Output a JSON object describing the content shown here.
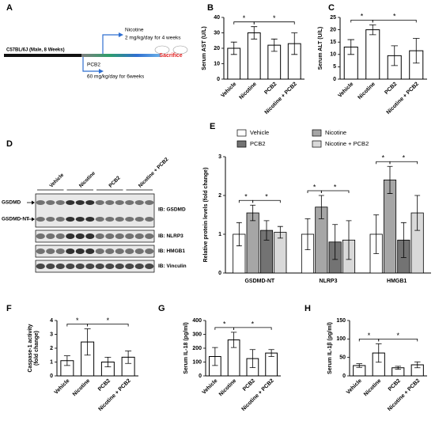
{
  "timeline": {
    "panel": "A",
    "strain": "C57BL/6J (Male, 8 Weeks)",
    "treatments": [
      {
        "name": "Nicotine",
        "dose": "2 mg/kg/day for 4 weeks"
      },
      {
        "name": "PCB2",
        "dose": "60 mg/kg/day for 6weeks"
      }
    ],
    "endpoint": "Sacrifice"
  },
  "blot": {
    "panel": "D",
    "groups": [
      "Vehicle",
      "Nicotine",
      "PCB2",
      "Nicotine + PCB2"
    ],
    "bands": [
      "GSDMD",
      "GSDMD-NT"
    ],
    "antibodies": [
      "IB: GSDMD",
      "IB: NLRP3",
      "IB: HMGB1",
      "IB: Vinculin"
    ]
  },
  "chart_data": [
    {
      "panel": "B",
      "type": "bar",
      "ylabel": "Serum AST (U/L)",
      "categories": [
        "Vehicle",
        "Nicotine",
        "PCB2",
        "Nicotine + PCB2"
      ],
      "values": [
        20,
        30,
        22,
        23
      ],
      "errors": [
        4,
        4,
        4,
        7
      ],
      "color": "#ffffff",
      "ylim": [
        0,
        40
      ],
      "yticks": [
        0,
        10,
        20,
        30,
        40
      ],
      "annotations": [
        {
          "text": "*",
          "from": 0,
          "to": 1
        },
        {
          "text": "*",
          "from": 1,
          "to": 3
        }
      ]
    },
    {
      "panel": "C",
      "type": "bar",
      "ylabel": "Serum ALT (U/L)",
      "categories": [
        "Vehicle",
        "Nicotine",
        "PCB2",
        "Nicotine + PCB2"
      ],
      "values": [
        13,
        20,
        9.5,
        11.5
      ],
      "errors": [
        3,
        2,
        4,
        5
      ],
      "color": "#ffffff",
      "ylim": [
        0,
        25
      ],
      "yticks": [
        0,
        5,
        10,
        15,
        20,
        25
      ],
      "annotations": [
        {
          "text": "*",
          "from": 0,
          "to": 1
        },
        {
          "text": "*",
          "from": 1,
          "to": 3
        }
      ]
    },
    {
      "panel": "E",
      "type": "grouped_bar",
      "ylabel": "Relative protein levels (fold change)",
      "categories": [
        "GSDMD-NT",
        "NLRP3",
        "HMGB1"
      ],
      "series": [
        {
          "name": "Vehicle",
          "color": "#ffffff",
          "values": [
            1.0,
            1.0,
            1.0
          ],
          "errors": [
            0.3,
            0.4,
            0.5
          ]
        },
        {
          "name": "Nicotine",
          "color": "#a6a6a6",
          "values": [
            1.55,
            1.7,
            2.4
          ],
          "errors": [
            0.2,
            0.3,
            0.35
          ]
        },
        {
          "name": "PCB2",
          "color": "#737373",
          "values": [
            1.1,
            0.8,
            0.85
          ],
          "errors": [
            0.25,
            0.45,
            0.45
          ]
        },
        {
          "name": "Nicotine + PCB2",
          "color": "#d9d9d9",
          "values": [
            1.05,
            0.85,
            1.55
          ],
          "errors": [
            0.15,
            0.5,
            0.45
          ]
        }
      ],
      "ylim": [
        0,
        3
      ],
      "yticks": [
        0,
        1,
        2,
        3
      ],
      "annotations": [
        {
          "text": "*",
          "category": 0,
          "from": 0,
          "to": 1
        },
        {
          "text": "*",
          "category": 0,
          "from": 1,
          "to": 3
        },
        {
          "text": "*",
          "category": 1,
          "from": 0,
          "to": 1
        },
        {
          "text": "*",
          "category": 1,
          "from": 1,
          "to": 3
        },
        {
          "text": "*",
          "category": 2,
          "from": 0,
          "to": 1
        },
        {
          "text": "*",
          "category": 2,
          "from": 1,
          "to": 3
        }
      ]
    },
    {
      "panel": "F",
      "type": "bar",
      "ylabel": [
        "Caspase-1 activity",
        "(fold change)"
      ],
      "categories": [
        "Vehicle",
        "Nicotine",
        "PCB2",
        "Nicotine + PCB2"
      ],
      "values": [
        1.1,
        2.45,
        1.0,
        1.35
      ],
      "errors": [
        0.35,
        0.95,
        0.35,
        0.45
      ],
      "color": "#ffffff",
      "ylim": [
        0,
        4
      ],
      "yticks": [
        0,
        1,
        2,
        3,
        4
      ],
      "annotations": [
        {
          "text": "*",
          "from": 0,
          "to": 1
        },
        {
          "text": "*",
          "from": 1,
          "to": 3
        }
      ]
    },
    {
      "panel": "G",
      "type": "bar",
      "ylabel": "Serum IL-18 (pg/ml)",
      "categories": [
        "Vehicle",
        "Nicotine",
        "PCB2",
        "Nicotine + PCB2"
      ],
      "values": [
        140,
        260,
        125,
        165
      ],
      "errors": [
        65,
        55,
        65,
        25
      ],
      "color": "#ffffff",
      "ylim": [
        0,
        400
      ],
      "yticks": [
        0,
        100,
        200,
        300,
        400
      ],
      "annotations": [
        {
          "text": "*",
          "from": 0,
          "to": 1
        },
        {
          "text": "*",
          "from": 1,
          "to": 3
        }
      ]
    },
    {
      "panel": "H",
      "type": "bar",
      "ylabel": "Serum IL-1β (pg/ml)",
      "categories": [
        "Vehicle",
        "Nicotine",
        "PCB2",
        "Nicotine + PCB2"
      ],
      "values": [
        28,
        62,
        22,
        30
      ],
      "errors": [
        5,
        25,
        4,
        8
      ],
      "color": "#ffffff",
      "ylim": [
        0,
        150
      ],
      "yticks": [
        0,
        50,
        100,
        150
      ],
      "annotations": [
        {
          "text": "*",
          "from": 0,
          "to": 1
        },
        {
          "text": "*",
          "from": 1,
          "to": 3
        }
      ]
    }
  ]
}
